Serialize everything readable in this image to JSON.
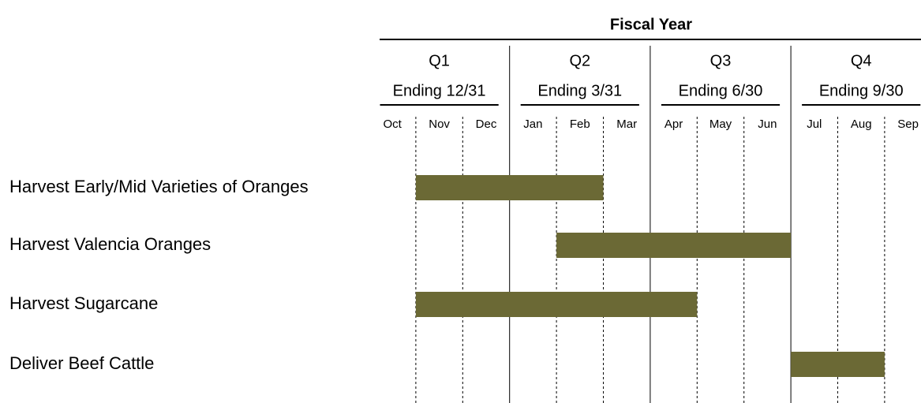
{
  "chart_data": {
    "type": "gantt",
    "title": "Fiscal Year",
    "quarters": [
      {
        "name": "Q1",
        "ending": "Ending 12/31"
      },
      {
        "name": "Q2",
        "ending": "Ending 3/31"
      },
      {
        "name": "Q3",
        "ending": "Ending 6/30"
      },
      {
        "name": "Q4",
        "ending": "Ending 9/30"
      }
    ],
    "months": [
      "Oct",
      "Nov",
      "Dec",
      "Jan",
      "Feb",
      "Mar",
      "Apr",
      "May",
      "Jun",
      "Jul",
      "Aug",
      "Sep"
    ],
    "tasks": [
      {
        "name": "Harvest Early/Mid Varieties of Oranges",
        "start": 1,
        "end": 5
      },
      {
        "name": "Harvest Valencia Oranges",
        "start": 4,
        "end": 9
      },
      {
        "name": "Harvest Sugarcane",
        "start": 1,
        "end": 7
      },
      {
        "name": "Deliver Beef Cattle",
        "start": 9,
        "end": 11
      }
    ],
    "color": "#6b6935"
  }
}
